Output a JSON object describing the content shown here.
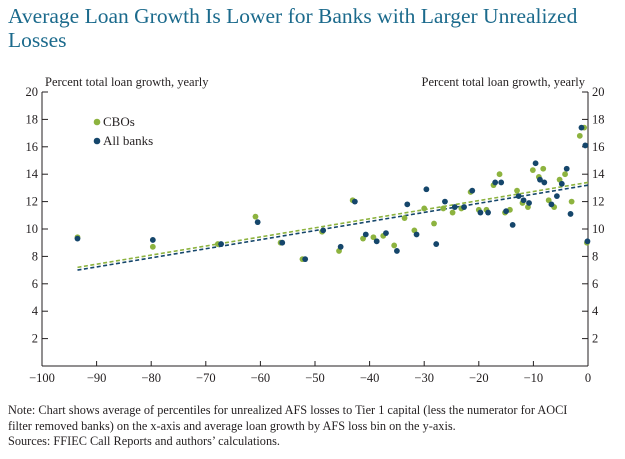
{
  "title": "Average Loan Growth Is Lower for Banks with Larger Unrealized Losses",
  "note": {
    "line1": "Note: Chart shows average of percentiles for unrealized AFS losses to Tier 1 capital (less the numerator for AOCI",
    "line2": "filter removed banks) on the x-axis and average loan growth by AFS loss bin on the y-axis.",
    "line3": "Sources: FFIEC Call Reports and authors’ calculations."
  },
  "colors": {
    "cbos": "#8db33f",
    "all_banks": "#15466b",
    "title": "#1b6a8c",
    "axis": "#231f20"
  },
  "chart_data": {
    "type": "scatter",
    "ylabel_left": "Percent total loan growth, yearly",
    "ylabel_right": "Percent total loan growth, yearly",
    "xlim": [
      -100,
      0
    ],
    "ylim": [
      0,
      20
    ],
    "xticks": [
      -100,
      -90,
      -80,
      -70,
      -60,
      -50,
      -40,
      -30,
      -20,
      -10,
      0
    ],
    "xtick_labels": [
      "−100",
      "−90",
      "−80",
      "−70",
      "−60",
      "−50",
      "−40",
      "−30",
      "−20",
      "−10",
      "0"
    ],
    "yticks": [
      2,
      4,
      6,
      8,
      10,
      12,
      14,
      16,
      18,
      20
    ],
    "ytick_labels": [
      "2",
      "4",
      "6",
      "8",
      "10",
      "12",
      "14",
      "16",
      "18",
      "20"
    ],
    "legend_position": "top-left",
    "series": [
      {
        "name": "CBOs",
        "color": "#8db33f",
        "points": [
          [
            -93.5,
            9.4
          ],
          [
            -79.7,
            8.7
          ],
          [
            -67.8,
            8.9
          ],
          [
            -60.9,
            10.9
          ],
          [
            -56.3,
            9.0
          ],
          [
            -52.3,
            7.8
          ],
          [
            -48.7,
            9.8
          ],
          [
            -45.6,
            8.4
          ],
          [
            -43.1,
            12.1
          ],
          [
            -41.2,
            9.3
          ],
          [
            -39.3,
            9.4
          ],
          [
            -37.5,
            9.5
          ],
          [
            -35.5,
            8.8
          ],
          [
            -33.6,
            10.8
          ],
          [
            -31.8,
            9.9
          ],
          [
            -30.0,
            11.5
          ],
          [
            -28.2,
            10.4
          ],
          [
            -26.5,
            11.5
          ],
          [
            -24.8,
            11.2
          ],
          [
            -23.2,
            11.5
          ],
          [
            -21.5,
            12.7
          ],
          [
            -20.0,
            11.4
          ],
          [
            -18.6,
            11.4
          ],
          [
            -17.3,
            13.2
          ],
          [
            -16.2,
            14.0
          ],
          [
            -15.2,
            11.2
          ],
          [
            -14.3,
            11.4
          ],
          [
            -13.0,
            12.8
          ],
          [
            -12.0,
            11.9
          ],
          [
            -11.0,
            11.6
          ],
          [
            -10.1,
            14.3
          ],
          [
            -9.0,
            13.8
          ],
          [
            -8.2,
            14.4
          ],
          [
            -7.2,
            12.1
          ],
          [
            -6.2,
            11.6
          ],
          [
            -5.2,
            13.6
          ],
          [
            -4.2,
            14.0
          ],
          [
            -3.0,
            12.0
          ],
          [
            -1.5,
            16.8
          ],
          [
            -0.7,
            17.4
          ],
          [
            -0.2,
            9.0
          ]
        ]
      },
      {
        "name": "All banks",
        "color": "#15466b",
        "points": [
          [
            -93.5,
            9.3
          ],
          [
            -79.7,
            9.2
          ],
          [
            -67.2,
            8.9
          ],
          [
            -60.5,
            10.5
          ],
          [
            -56.0,
            9.0
          ],
          [
            -51.8,
            7.8
          ],
          [
            -48.5,
            9.9
          ],
          [
            -45.3,
            8.7
          ],
          [
            -42.7,
            12.0
          ],
          [
            -40.7,
            9.6
          ],
          [
            -38.7,
            9.1
          ],
          [
            -37.0,
            9.7
          ],
          [
            -35.0,
            8.4
          ],
          [
            -33.1,
            11.8
          ],
          [
            -31.4,
            9.6
          ],
          [
            -29.6,
            12.9
          ],
          [
            -27.8,
            8.9
          ],
          [
            -26.2,
            12.0
          ],
          [
            -24.4,
            11.6
          ],
          [
            -22.7,
            11.6
          ],
          [
            -21.2,
            12.8
          ],
          [
            -19.7,
            11.2
          ],
          [
            -18.3,
            11.2
          ],
          [
            -17.0,
            13.4
          ],
          [
            -15.9,
            13.4
          ],
          [
            -15.0,
            11.3
          ],
          [
            -13.8,
            10.3
          ],
          [
            -12.7,
            12.4
          ],
          [
            -11.8,
            12.1
          ],
          [
            -10.8,
            11.9
          ],
          [
            -9.6,
            14.8
          ],
          [
            -8.8,
            13.6
          ],
          [
            -8.0,
            13.4
          ],
          [
            -6.7,
            11.8
          ],
          [
            -5.7,
            12.4
          ],
          [
            -4.8,
            13.3
          ],
          [
            -3.9,
            14.4
          ],
          [
            -3.2,
            11.1
          ],
          [
            -1.2,
            17.4
          ],
          [
            -0.5,
            16.1
          ],
          [
            -0.1,
            9.1
          ]
        ]
      }
    ],
    "trendlines": [
      {
        "series": "CBOs",
        "from": [
          -93.5,
          7.2
        ],
        "to": [
          0,
          13.4
        ]
      },
      {
        "series": "All banks",
        "from": [
          -93.5,
          7.0
        ],
        "to": [
          0,
          13.2
        ]
      }
    ]
  }
}
